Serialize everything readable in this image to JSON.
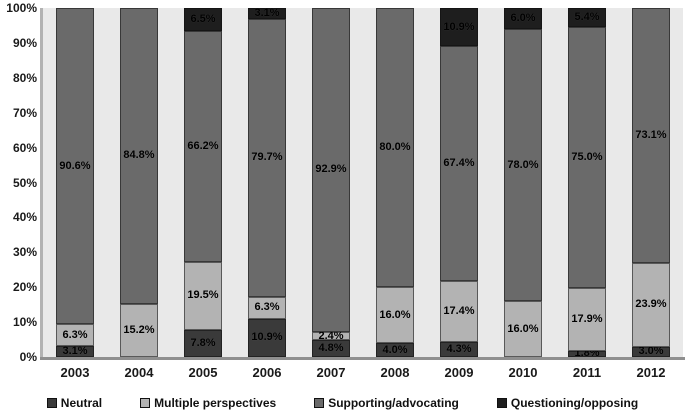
{
  "chart_data": {
    "type": "bar",
    "variant": "stacked-100-percent-column",
    "title": "",
    "xlabel": "",
    "ylabel": "",
    "grid": false,
    "legend_position": "bottom",
    "ylim": [
      0,
      100
    ],
    "y_ticks": [
      "100%",
      "90%",
      "80%",
      "70%",
      "60%",
      "50%",
      "40%",
      "30%",
      "20%",
      "10%",
      "0%"
    ],
    "categories": [
      "2003",
      "2004",
      "2005",
      "2006",
      "2007",
      "2008",
      "2009",
      "2010",
      "2011",
      "2012"
    ],
    "series": [
      {
        "name": "Neutral",
        "color": "#3a3a3a",
        "values": [
          3.1,
          0,
          7.8,
          10.9,
          4.8,
          4.0,
          4.3,
          0,
          1.8,
          3.0
        ]
      },
      {
        "name": "Multiple perspectives",
        "color": "#b3b3b3",
        "values": [
          6.3,
          15.2,
          19.5,
          6.3,
          2.4,
          16.0,
          17.4,
          16.0,
          17.9,
          23.9
        ]
      },
      {
        "name": "Supporting/advocating",
        "color": "#6a6a6a",
        "values": [
          90.6,
          84.8,
          66.2,
          79.7,
          92.9,
          80.0,
          67.4,
          78.0,
          75.0,
          73.1
        ]
      },
      {
        "name": "Questioning/opposing",
        "color": "#1e1e1e",
        "values": [
          0,
          0,
          6.5,
          3.1,
          0,
          0,
          10.9,
          6.0,
          5.4,
          0
        ]
      }
    ],
    "data_label_format": "one-decimal-percent",
    "colors": {
      "plot_background": "#e9e9e9",
      "axis_line_y": "#b2b2b2",
      "axis_line_x": "#8f8f8f",
      "tick_text": "#1a1a1a",
      "data_label_text": "#000000"
    }
  }
}
